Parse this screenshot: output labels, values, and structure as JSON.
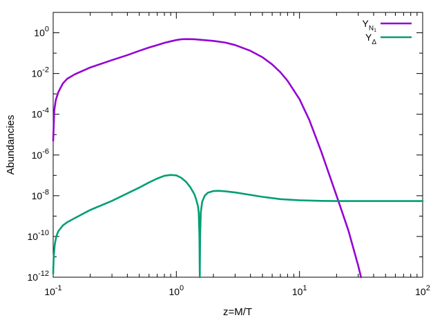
{
  "chart_data": {
    "type": "line",
    "xlabel": "z=M/T",
    "ylabel": "Abundancies",
    "xscale": "log",
    "yscale": "log",
    "xlim": [
      0.1,
      100
    ],
    "ylim": [
      1e-12,
      10
    ],
    "grid": false,
    "legend_position": "top-right",
    "x_ticks": [
      {
        "value": 0.1,
        "base": "10",
        "exp": "-1"
      },
      {
        "value": 1,
        "base": "10",
        "exp": "0"
      },
      {
        "value": 10,
        "base": "10",
        "exp": "1"
      },
      {
        "value": 100,
        "base": "10",
        "exp": "2"
      }
    ],
    "y_ticks": [
      {
        "value": 1,
        "base": "10",
        "exp": "0"
      },
      {
        "value": 0.01,
        "base": "10",
        "exp": "-2"
      },
      {
        "value": 0.0001,
        "base": "10",
        "exp": "-4"
      },
      {
        "value": 1e-06,
        "base": "10",
        "exp": "-6"
      },
      {
        "value": 1e-08,
        "base": "10",
        "exp": "-8"
      },
      {
        "value": 1e-10,
        "base": "10",
        "exp": "-10"
      },
      {
        "value": 1e-12,
        "base": "10",
        "exp": "-12"
      }
    ],
    "series": [
      {
        "name": "Y_N1",
        "label_main": "Y",
        "label_sub": "N",
        "label_subsub": "1",
        "color": "#9400d3",
        "points": [
          [
            0.1,
            5e-06
          ],
          [
            0.102,
            0.00015
          ],
          [
            0.105,
            0.0005
          ],
          [
            0.11,
            0.0012
          ],
          [
            0.12,
            0.0033
          ],
          [
            0.13,
            0.0055
          ],
          [
            0.15,
            0.0092
          ],
          [
            0.2,
            0.0198
          ],
          [
            0.3,
            0.0455
          ],
          [
            0.4,
            0.08
          ],
          [
            0.5,
            0.13
          ],
          [
            0.6,
            0.19
          ],
          [
            0.7,
            0.25
          ],
          [
            0.8,
            0.32
          ],
          [
            0.9,
            0.38
          ],
          [
            1.0,
            0.44
          ],
          [
            1.1,
            0.48
          ],
          [
            1.2,
            0.49
          ],
          [
            1.4,
            0.48
          ],
          [
            1.6,
            0.45
          ],
          [
            2.0,
            0.4
          ],
          [
            2.5,
            0.33
          ],
          [
            3.0,
            0.25
          ],
          [
            4.0,
            0.13
          ],
          [
            5.0,
            0.063
          ],
          [
            6.0,
            0.028
          ],
          [
            7.0,
            0.0115
          ],
          [
            8.0,
            0.0044
          ],
          [
            10.0,
            0.00055
          ],
          [
            12.0,
            5.3e-05
          ],
          [
            15.0,
            1.5e-06
          ],
          [
            20.0,
            1e-08
          ],
          [
            25.0,
            1.9e-10
          ],
          [
            30.0,
            3.6e-12
          ],
          [
            31.6,
            1e-12
          ]
        ]
      },
      {
        "name": "Y_Delta",
        "label_main": "Y",
        "label_sub": "Δ",
        "color": "#009e73",
        "points": [
          [
            0.1,
            1.5e-12
          ],
          [
            0.101,
            1e-11
          ],
          [
            0.103,
            4e-11
          ],
          [
            0.106,
            1e-10
          ],
          [
            0.11,
            1.8e-10
          ],
          [
            0.12,
            3.5e-10
          ],
          [
            0.13,
            5e-10
          ],
          [
            0.15,
            8e-10
          ],
          [
            0.2,
            2e-09
          ],
          [
            0.3,
            5.6e-09
          ],
          [
            0.4,
            1.3e-08
          ],
          [
            0.5,
            2.5e-08
          ],
          [
            0.6,
            4.5e-08
          ],
          [
            0.7,
            7e-08
          ],
          [
            0.8,
            9.5e-08
          ],
          [
            0.9,
            1.05e-07
          ],
          [
            1.0,
            1e-07
          ],
          [
            1.1,
            7.5e-08
          ],
          [
            1.2,
            4.8e-08
          ],
          [
            1.3,
            2.6e-08
          ],
          [
            1.4,
            1.2e-08
          ],
          [
            1.45,
            6.5e-09
          ],
          [
            1.5,
            3e-09
          ],
          [
            1.52,
            1.5e-09
          ],
          [
            1.54,
            1e-10
          ],
          [
            1.55,
            1e-12
          ],
          [
            1.56,
            1e-10
          ],
          [
            1.58,
            1.5e-09
          ],
          [
            1.62,
            5e-09
          ],
          [
            1.7,
            1e-08
          ],
          [
            1.8,
            1.4e-08
          ],
          [
            2.0,
            1.7e-08
          ],
          [
            2.2,
            1.75e-08
          ],
          [
            2.5,
            1.65e-08
          ],
          [
            3.0,
            1.45e-08
          ],
          [
            4.0,
            1.1e-08
          ],
          [
            5.0,
            8.8e-09
          ],
          [
            7.0,
            6.8e-09
          ],
          [
            10.0,
            6e-09
          ],
          [
            15.0,
            5.6e-09
          ],
          [
            20.0,
            5.5e-09
          ],
          [
            50.0,
            5.5e-09
          ],
          [
            100.0,
            5.5e-09
          ]
        ]
      }
    ]
  }
}
